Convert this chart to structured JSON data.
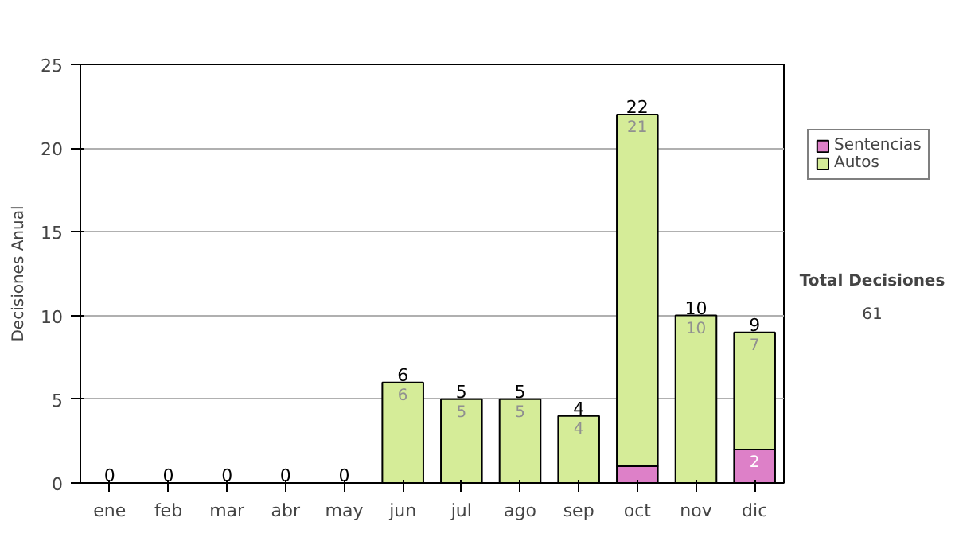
{
  "chart_data": {
    "type": "bar",
    "stacked": true,
    "ylabel": "Decisiones Anual",
    "categories": [
      "ene",
      "feb",
      "mar",
      "abr",
      "may",
      "jun",
      "jul",
      "ago",
      "sep",
      "oct",
      "nov",
      "dic"
    ],
    "series": [
      {
        "name": "Sentencias",
        "color": "#dd80c8",
        "values": [
          0,
          0,
          0,
          0,
          0,
          0,
          0,
          0,
          0,
          1,
          0,
          2
        ],
        "value_labels": [
          null,
          null,
          null,
          null,
          null,
          null,
          null,
          null,
          null,
          null,
          null,
          "2"
        ]
      },
      {
        "name": "Autos",
        "color": "#d5ec98",
        "values": [
          0,
          0,
          0,
          0,
          0,
          6,
          5,
          5,
          4,
          21,
          10,
          7
        ],
        "value_labels": [
          null,
          null,
          null,
          null,
          null,
          "6",
          "5",
          "5",
          "4",
          "21",
          "10",
          "7"
        ]
      }
    ],
    "totals": [
      "0",
      "0",
      "0",
      "0",
      "0",
      "6",
      "5",
      "5",
      "4",
      "22",
      "10",
      "9"
    ],
    "ylim": [
      0,
      25
    ],
    "yticks": [
      0,
      5,
      10,
      15,
      20,
      25
    ],
    "grid": "y",
    "legend": "right",
    "annotations": [
      "Total Decisiones",
      "61"
    ]
  }
}
